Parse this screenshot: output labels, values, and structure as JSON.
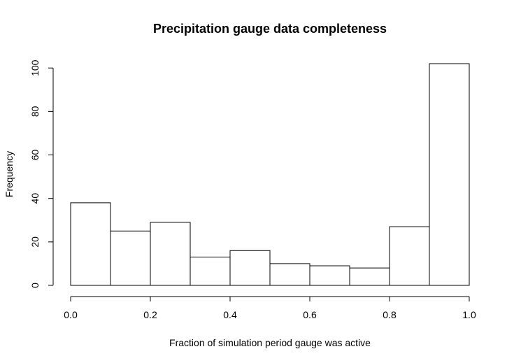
{
  "chart_data": {
    "type": "bar",
    "title": "Precipitation gauge data completeness",
    "xlabel": "Fraction of simulation period gauge was active",
    "ylabel": "Frequency",
    "bins": [
      {
        "start": 0.0,
        "end": 0.1,
        "count": 38
      },
      {
        "start": 0.1,
        "end": 0.2,
        "count": 25
      },
      {
        "start": 0.2,
        "end": 0.3,
        "count": 29
      },
      {
        "start": 0.3,
        "end": 0.4,
        "count": 13
      },
      {
        "start": 0.4,
        "end": 0.5,
        "count": 16
      },
      {
        "start": 0.5,
        "end": 0.6,
        "count": 10
      },
      {
        "start": 0.6,
        "end": 0.7,
        "count": 9
      },
      {
        "start": 0.7,
        "end": 0.8,
        "count": 8
      },
      {
        "start": 0.8,
        "end": 0.9,
        "count": 27
      },
      {
        "start": 0.9,
        "end": 1.0,
        "count": 102
      }
    ],
    "xlim": [
      0.0,
      1.0
    ],
    "ylim": [
      0,
      102
    ],
    "x_ticks": [
      "0.0",
      "0.2",
      "0.4",
      "0.6",
      "0.8",
      "1.0"
    ],
    "y_ticks": [
      "0",
      "20",
      "40",
      "60",
      "80",
      "100"
    ],
    "grid": false,
    "legend": "none"
  }
}
